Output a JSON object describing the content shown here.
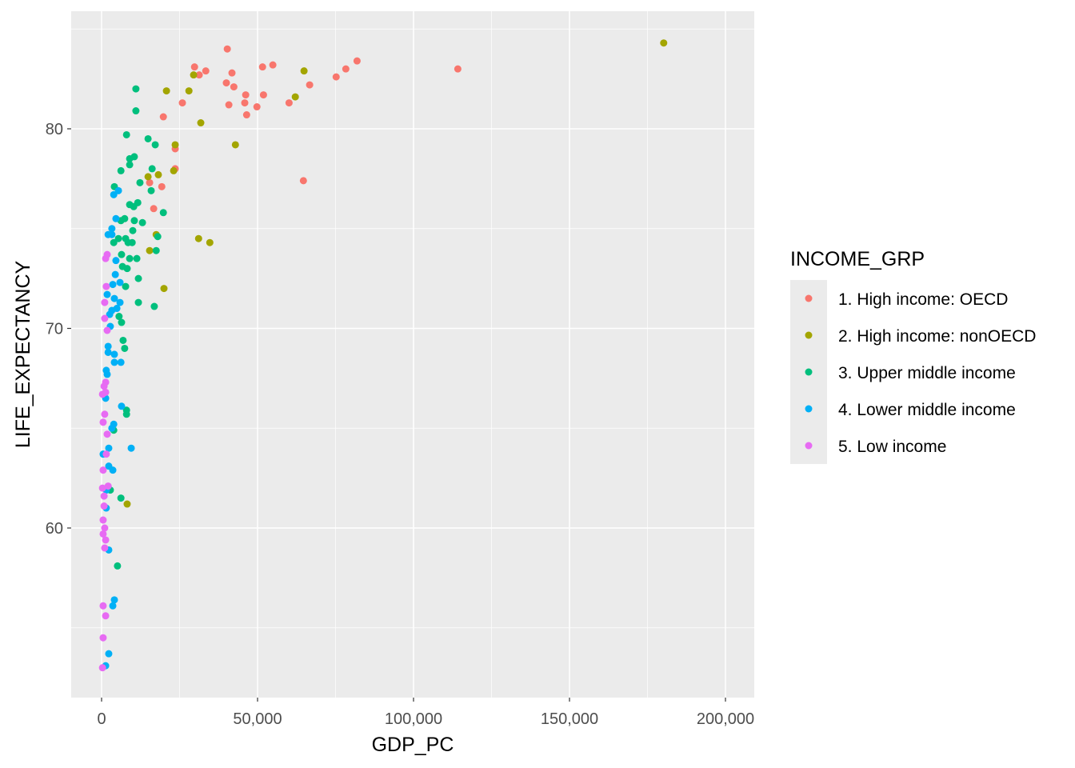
{
  "chart_data": {
    "type": "scatter",
    "title": "",
    "xlabel": "GDP_PC",
    "ylabel": "LIFE_EXPECTANCY",
    "xlim": [
      -10000,
      210000
    ],
    "ylim": [
      51.5,
      86.5
    ],
    "x_ticks": [
      0,
      50000,
      100000,
      150000,
      200000
    ],
    "x_tick_labels": [
      "0",
      "50,000",
      "100,000",
      "150,000",
      "200,000"
    ],
    "y_ticks": [
      60,
      70,
      80
    ],
    "y_tick_labels": [
      "60",
      "70",
      "80"
    ],
    "grid": true,
    "legend": {
      "title": "INCOME_GRP",
      "placement": "right"
    },
    "series": [
      {
        "name": "1. High income: OECD",
        "color": "#F8766D",
        "points": [
          [
            40300,
            84.0
          ],
          [
            29800,
            83.1
          ],
          [
            31300,
            82.7
          ],
          [
            33400,
            82.9
          ],
          [
            40000,
            82.3
          ],
          [
            42400,
            82.1
          ],
          [
            51600,
            83.1
          ],
          [
            54900,
            83.2
          ],
          [
            81900,
            83.4
          ],
          [
            78300,
            83.0
          ],
          [
            75200,
            82.6
          ],
          [
            66700,
            82.2
          ],
          [
            114200,
            83.0
          ],
          [
            41800,
            82.8
          ],
          [
            46200,
            81.7
          ],
          [
            51900,
            81.7
          ],
          [
            45900,
            81.3
          ],
          [
            40800,
            81.2
          ],
          [
            49800,
            81.1
          ],
          [
            46500,
            80.7
          ],
          [
            60100,
            81.3
          ],
          [
            25900,
            81.3
          ],
          [
            19800,
            80.6
          ],
          [
            23600,
            79.0
          ],
          [
            23600,
            78.0
          ],
          [
            19300,
            77.1
          ],
          [
            15400,
            77.3
          ],
          [
            16700,
            76.0
          ],
          [
            64700,
            77.4
          ]
        ]
      },
      {
        "name": "2. High income: nonOECD",
        "color": "#A3A500",
        "points": [
          [
            180200,
            84.3
          ],
          [
            64900,
            82.9
          ],
          [
            29500,
            82.7
          ],
          [
            28000,
            81.9
          ],
          [
            20800,
            81.9
          ],
          [
            31800,
            80.3
          ],
          [
            62100,
            81.6
          ],
          [
            23600,
            79.2
          ],
          [
            42900,
            79.2
          ],
          [
            23100,
            77.9
          ],
          [
            14900,
            77.6
          ],
          [
            18200,
            77.7
          ],
          [
            31100,
            74.5
          ],
          [
            34700,
            74.3
          ],
          [
            17500,
            74.7
          ],
          [
            15400,
            73.9
          ],
          [
            20000,
            72.0
          ],
          [
            8200,
            61.2
          ]
        ]
      },
      {
        "name": "3. Upper middle income",
        "color": "#00BF7D",
        "points": [
          [
            8000,
            79.7
          ],
          [
            14900,
            79.5
          ],
          [
            17200,
            79.2
          ],
          [
            10500,
            78.6
          ],
          [
            9000,
            78.5
          ],
          [
            9000,
            78.2
          ],
          [
            6200,
            77.9
          ],
          [
            16200,
            78.0
          ],
          [
            12300,
            77.3
          ],
          [
            15900,
            76.9
          ],
          [
            4100,
            77.1
          ],
          [
            9000,
            76.2
          ],
          [
            10300,
            76.1
          ],
          [
            11600,
            76.3
          ],
          [
            19800,
            75.8
          ],
          [
            7400,
            75.5
          ],
          [
            6200,
            75.4
          ],
          [
            10500,
            75.4
          ],
          [
            13100,
            75.3
          ],
          [
            10000,
            74.9
          ],
          [
            18000,
            74.6
          ],
          [
            5400,
            74.5
          ],
          [
            7700,
            74.5
          ],
          [
            3900,
            74.3
          ],
          [
            8500,
            74.3
          ],
          [
            9800,
            74.3
          ],
          [
            17500,
            73.9
          ],
          [
            6400,
            73.7
          ],
          [
            9000,
            73.5
          ],
          [
            11300,
            73.5
          ],
          [
            6700,
            73.1
          ],
          [
            8200,
            73.0
          ],
          [
            11800,
            72.5
          ],
          [
            7700,
            72.1
          ],
          [
            11800,
            71.3
          ],
          [
            16900,
            71.1
          ],
          [
            5600,
            70.6
          ],
          [
            6400,
            70.3
          ],
          [
            6900,
            69.4
          ],
          [
            7400,
            69.0
          ],
          [
            8000,
            65.9
          ],
          [
            8000,
            65.7
          ],
          [
            3900,
            64.9
          ],
          [
            2800,
            61.9
          ],
          [
            6200,
            61.5
          ],
          [
            5100,
            58.1
          ],
          [
            11000,
            82.0
          ],
          [
            11000,
            80.9
          ]
        ]
      },
      {
        "name": "4. Lower middle income",
        "color": "#00B0F6",
        "points": [
          [
            5400,
            76.9
          ],
          [
            3900,
            76.7
          ],
          [
            4600,
            75.5
          ],
          [
            3300,
            75.0
          ],
          [
            2100,
            74.7
          ],
          [
            3300,
            74.7
          ],
          [
            4600,
            73.4
          ],
          [
            4400,
            72.7
          ],
          [
            3600,
            72.2
          ],
          [
            5900,
            72.3
          ],
          [
            1800,
            71.7
          ],
          [
            4100,
            71.5
          ],
          [
            5900,
            71.3
          ],
          [
            4900,
            71.0
          ],
          [
            3300,
            70.9
          ],
          [
            2600,
            70.7
          ],
          [
            2800,
            70.1
          ],
          [
            2100,
            69.1
          ],
          [
            2100,
            68.8
          ],
          [
            4100,
            68.7
          ],
          [
            4100,
            68.3
          ],
          [
            6200,
            68.3
          ],
          [
            1500,
            67.9
          ],
          [
            1800,
            67.7
          ],
          [
            1300,
            66.5
          ],
          [
            6400,
            66.1
          ],
          [
            3900,
            65.2
          ],
          [
            3300,
            65.0
          ],
          [
            9500,
            64.0
          ],
          [
            2300,
            64.0
          ],
          [
            500,
            63.7
          ],
          [
            2300,
            63.1
          ],
          [
            3600,
            62.9
          ],
          [
            1500,
            61.9
          ],
          [
            1500,
            61.0
          ],
          [
            2300,
            58.9
          ],
          [
            4100,
            56.4
          ],
          [
            3600,
            56.1
          ],
          [
            2300,
            53.7
          ],
          [
            1300,
            53.1
          ]
        ]
      },
      {
        "name": "5. Low income",
        "color": "#E76BF3",
        "points": [
          [
            1800,
            73.7
          ],
          [
            1300,
            73.5
          ],
          [
            1500,
            72.1
          ],
          [
            1000,
            71.3
          ],
          [
            1000,
            70.5
          ],
          [
            1800,
            69.9
          ],
          [
            1300,
            67.3
          ],
          [
            800,
            67.1
          ],
          [
            1300,
            66.8
          ],
          [
            300,
            66.7
          ],
          [
            1000,
            65.7
          ],
          [
            500,
            65.3
          ],
          [
            1800,
            64.7
          ],
          [
            1500,
            63.7
          ],
          [
            500,
            62.9
          ],
          [
            300,
            62.0
          ],
          [
            2100,
            62.1
          ],
          [
            800,
            61.6
          ],
          [
            800,
            61.1
          ],
          [
            500,
            60.4
          ],
          [
            1000,
            60.0
          ],
          [
            500,
            59.7
          ],
          [
            1300,
            59.4
          ],
          [
            1000,
            59.0
          ],
          [
            500,
            56.1
          ],
          [
            1300,
            55.6
          ],
          [
            500,
            54.5
          ],
          [
            300,
            53.0
          ]
        ]
      }
    ]
  }
}
